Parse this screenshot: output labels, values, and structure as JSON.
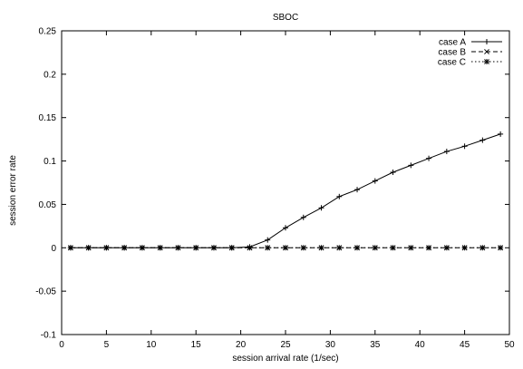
{
  "chart_data": {
    "type": "line",
    "title": "SBOC",
    "xlabel": "session arrival rate (1/sec)",
    "ylabel": "session error rate",
    "xlim": [
      0,
      50
    ],
    "ylim": [
      -0.1,
      0.25
    ],
    "x_ticks": [
      0,
      5,
      10,
      15,
      20,
      25,
      30,
      35,
      40,
      45,
      50
    ],
    "y_ticks": [
      -0.1,
      -0.05,
      0,
      0.05,
      0.1,
      0.15,
      0.2,
      0.25
    ],
    "x_tick_labels": [
      "0",
      "5",
      "10",
      "15",
      "20",
      "25",
      "30",
      "35",
      "40",
      "45",
      "50"
    ],
    "y_tick_labels": [
      "-0.1",
      "-0.05",
      "0",
      "0.05",
      "0.1",
      "0.15",
      "0.2",
      "0.25"
    ],
    "grid": false,
    "legend_position": "top-right",
    "x": [
      1,
      3,
      5,
      7,
      9,
      11,
      13,
      15,
      17,
      19,
      21,
      23,
      25,
      27,
      29,
      31,
      33,
      35,
      37,
      39,
      41,
      43,
      45,
      47,
      49
    ],
    "series": [
      {
        "name": "case A",
        "line_style": "solid",
        "marker": "plus",
        "values": [
          0,
          0,
          0,
          0,
          0,
          0,
          0,
          0,
          0,
          0,
          0.001,
          0.009,
          0.023,
          0.035,
          0.046,
          0.059,
          0.067,
          0.077,
          0.087,
          0.095,
          0.103,
          0.111,
          0.117,
          0.124,
          0.131
        ]
      },
      {
        "name": "case B",
        "line_style": "dashed",
        "marker": "x",
        "values": [
          0,
          0,
          0,
          0,
          0,
          0,
          0,
          0,
          0,
          0,
          0,
          0,
          0,
          0,
          0,
          0,
          0,
          0,
          0,
          0,
          0,
          0,
          0,
          0,
          0
        ]
      },
      {
        "name": "case C",
        "line_style": "dotted",
        "marker": "star",
        "values": [
          0,
          0,
          0,
          0,
          0,
          0,
          0,
          0,
          0,
          0,
          0,
          0,
          0,
          0,
          0,
          0,
          0,
          0,
          0,
          0,
          0,
          0,
          0,
          0,
          0
        ]
      }
    ]
  }
}
